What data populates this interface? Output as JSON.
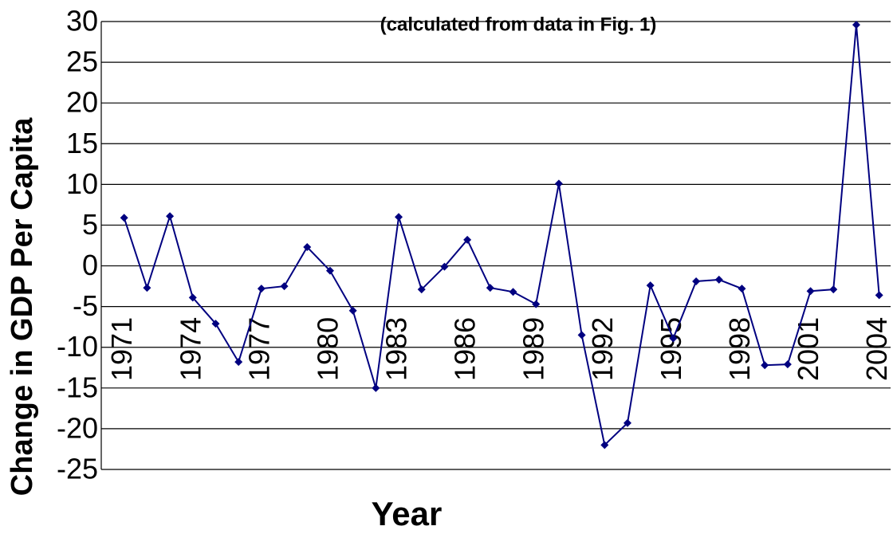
{
  "chart_data": {
    "type": "line",
    "title": "(calculated from data in Fig. 1)",
    "x_label": "Year",
    "y_label": "Change in GDP Per Capita",
    "x": [
      1971,
      1972,
      1973,
      1974,
      1975,
      1976,
      1977,
      1978,
      1979,
      1980,
      1981,
      1982,
      1983,
      1984,
      1985,
      1986,
      1987,
      1988,
      1989,
      1990,
      1991,
      1992,
      1993,
      1994,
      1995,
      1996,
      1997,
      1998,
      1999,
      2000,
      2001,
      2002,
      2003,
      2004
    ],
    "series": [
      {
        "color": "#000080",
        "values": [
          5.9,
          -2.7,
          6.1,
          -3.9,
          -7.1,
          -11.8,
          -2.8,
          -2.5,
          2.3,
          -0.6,
          -5.5,
          -15.0,
          6.0,
          -2.9,
          -0.1,
          3.2,
          -2.7,
          -3.2,
          -4.7,
          10.1,
          -8.5,
          -22.0,
          -19.3,
          -2.4,
          -8.9,
          -1.9,
          -1.7,
          -2.8,
          -12.2,
          -12.1,
          -3.1,
          -2.9,
          29.6,
          -3.6
        ]
      }
    ],
    "xlim": [
      1970,
      2004.5
    ],
    "xticks": [
      1971,
      1974,
      1977,
      1980,
      1983,
      1986,
      1989,
      1992,
      1995,
      1998,
      2001,
      2004
    ],
    "ylim": [
      -25,
      30
    ],
    "yticks": [
      30,
      25,
      20,
      15,
      10,
      5,
      0,
      -5,
      -10,
      -15,
      -20,
      -25
    ],
    "grid": true
  }
}
